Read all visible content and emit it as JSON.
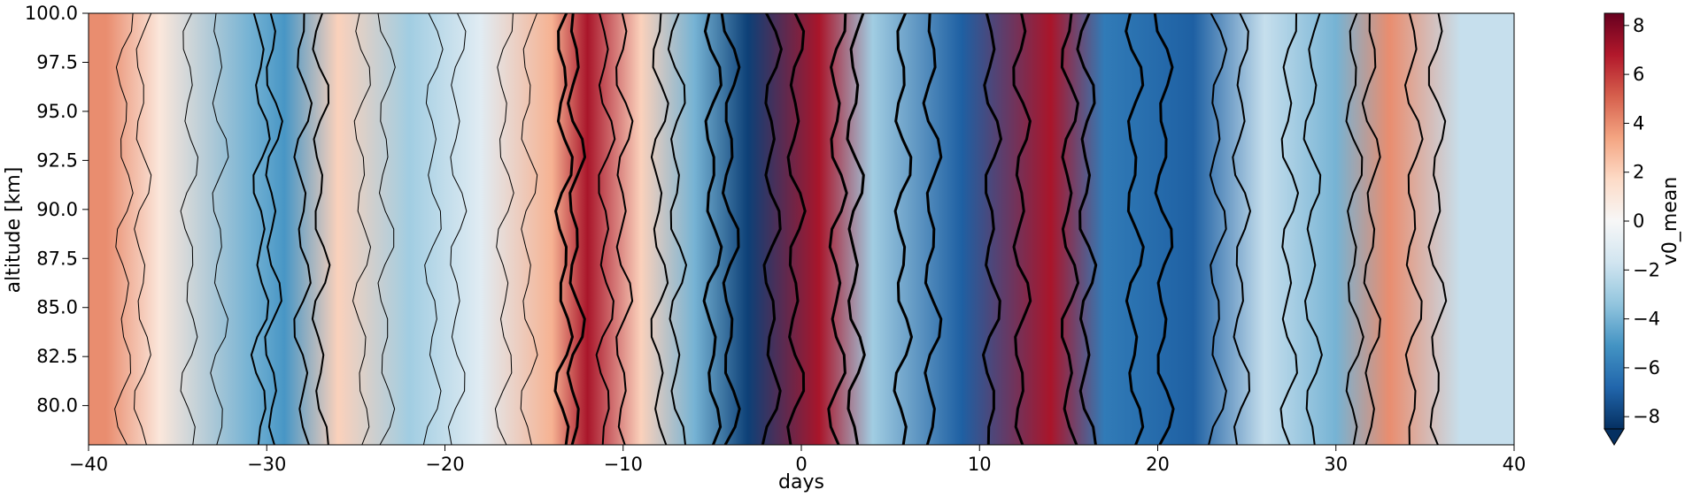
{
  "chart_data": {
    "type": "heatmap",
    "title": "",
    "xlabel": "days",
    "ylabel": "altitude [km]",
    "xlim": [
      -40,
      40
    ],
    "ylim": [
      78,
      100
    ],
    "x_ticks": [
      -40,
      -30,
      -20,
      -10,
      0,
      10,
      20,
      30,
      40
    ],
    "x_tick_labels": [
      "−40",
      "−30",
      "−20",
      "−10",
      "0",
      "10",
      "20",
      "30",
      "40"
    ],
    "y_ticks": [
      80,
      82.5,
      85,
      87.5,
      90,
      92.5,
      95,
      97.5,
      100
    ],
    "y_tick_labels": [
      "80.0",
      "82.5",
      "85.0",
      "87.5",
      "90.0",
      "92.5",
      "95.0",
      "97.5",
      "100.0"
    ],
    "colormap": "RdBu_r",
    "colorbar": {
      "label": "v0_mean",
      "vmin": -8.5,
      "vmax": 8.5,
      "extend": "min",
      "ticks": [
        -8,
        -6,
        -4,
        -2,
        0,
        2,
        4,
        6,
        8
      ],
      "tick_labels": [
        "−8",
        "−6",
        "−4",
        "−2",
        "0",
        "2",
        "4",
        "6",
        "8"
      ]
    },
    "approx_band_centers_days": [
      {
        "day": -39,
        "value": 4
      },
      {
        "day": -36,
        "value": 1
      },
      {
        "day": -31,
        "value": -4
      },
      {
        "day": -29,
        "value": -5
      },
      {
        "day": -26,
        "value": 2
      },
      {
        "day": -22,
        "value": -3
      },
      {
        "day": -18,
        "value": -1
      },
      {
        "day": -14,
        "value": 3
      },
      {
        "day": -12,
        "value": 7
      },
      {
        "day": -9,
        "value": 2
      },
      {
        "day": -6,
        "value": -4
      },
      {
        "day": -3,
        "value": -8
      },
      {
        "day": 1,
        "value": 7
      },
      {
        "day": 4,
        "value": -3
      },
      {
        "day": 9,
        "value": -7
      },
      {
        "day": 14,
        "value": 7
      },
      {
        "day": 17,
        "value": -6
      },
      {
        "day": 22,
        "value": -7
      },
      {
        "day": 26,
        "value": -2
      },
      {
        "day": 30,
        "value": -4
      },
      {
        "day": 33,
        "value": 4
      },
      {
        "day": 37,
        "value": -2
      }
    ]
  },
  "colors": {
    "neg_extreme": "#053061",
    "neg_strong": "#2166ac",
    "neg_mid": "#4393c3",
    "neg_weak": "#92c5de",
    "neg_faint": "#d1e5f0",
    "neutral": "#f7f7f7",
    "pos_faint": "#fddbc7",
    "pos_weak": "#f4a582",
    "pos_mid": "#d6604d",
    "pos_strong": "#b2182b",
    "pos_extreme": "#67001f",
    "contour": "#000000"
  }
}
